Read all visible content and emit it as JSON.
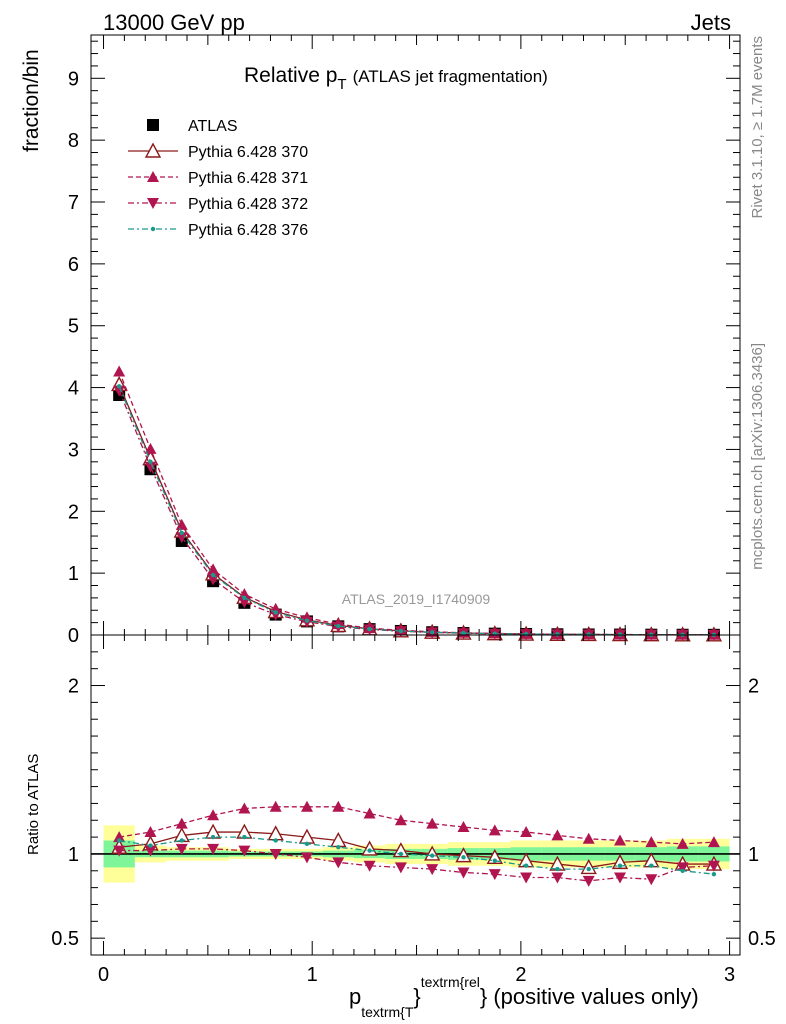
{
  "header": {
    "left": "13000 GeV pp",
    "right": "Jets",
    "side_top": "Rivet 3.1.10, ≥ 1.7M events",
    "side_bottom": "mcplots.cern.ch [arXiv:1306.3436]",
    "watermark": "ATLAS_2019_I1740909"
  },
  "chart_data": [
    {
      "type": "line",
      "title_main": "Relative p",
      "title_sub": "T",
      "title_paren": "(ATLAS jet fragmentation)",
      "ylabel": "fraction/bin",
      "ylim": [
        0,
        9.7
      ],
      "yticks": [
        0,
        1,
        2,
        3,
        4,
        5,
        6,
        7,
        8,
        9
      ],
      "xlim": [
        -0.06,
        3.05
      ],
      "x": [
        0.075,
        0.225,
        0.375,
        0.525,
        0.675,
        0.825,
        0.975,
        1.125,
        1.275,
        1.425,
        1.575,
        1.725,
        1.875,
        2.025,
        2.175,
        2.325,
        2.475,
        2.625,
        2.775,
        2.925
      ],
      "series": [
        {
          "name": "ATLAS",
          "color": "#000000",
          "marker": "square",
          "values": [
            3.88,
            2.68,
            1.52,
            0.87,
            0.52,
            0.33,
            0.22,
            0.14,
            0.095,
            0.065,
            0.045,
            0.032,
            0.022,
            0.016,
            0.012,
            0.009,
            0.007,
            0.005,
            0.004,
            0.003
          ]
        },
        {
          "name": "Pythia 6.428 370",
          "color": "#8b1a1a",
          "marker": "triangle-open",
          "dash": "",
          "values": [
            4.05,
            2.85,
            1.68,
            0.99,
            0.61,
            0.38,
            0.245,
            0.155,
            0.1,
            0.067,
            0.045,
            0.032,
            0.022,
            0.0155,
            0.0112,
            0.0083,
            0.0066,
            0.0048,
            0.0037,
            0.0028
          ]
        },
        {
          "name": "Pythia 6.428 371",
          "color": "#b0154f",
          "marker": "triangle-up",
          "dash": "5,3",
          "values": [
            4.26,
            3.01,
            1.78,
            1.06,
            0.66,
            0.42,
            0.28,
            0.175,
            0.112,
            0.075,
            0.051,
            0.036,
            0.025,
            0.018,
            0.013,
            0.0098,
            0.0076,
            0.0055,
            0.0043,
            0.0033
          ]
        },
        {
          "name": "Pythia 6.428 372",
          "color": "#b0154f",
          "marker": "triangle-down",
          "dash": "6,3,2,3",
          "values": [
            3.95,
            2.72,
            1.58,
            0.9,
            0.53,
            0.33,
            0.215,
            0.135,
            0.09,
            0.06,
            0.041,
            0.028,
            0.019,
            0.0138,
            0.0104,
            0.0076,
            0.0061,
            0.0043,
            0.0037,
            0.0028
          ]
        },
        {
          "name": "Pythia 6.428 376",
          "color": "#1a9a8a",
          "marker": "dot",
          "dash": "6,3,2,3",
          "values": [
            4.02,
            2.8,
            1.65,
            0.97,
            0.6,
            0.365,
            0.232,
            0.145,
            0.096,
            0.064,
            0.043,
            0.031,
            0.021,
            0.0147,
            0.0107,
            0.0083,
            0.0066,
            0.0047,
            0.0035,
            0.0026
          ]
        }
      ]
    },
    {
      "type": "line",
      "ylabel": "Ratio to ATLAS",
      "ylim": [
        0.4,
        2.3
      ],
      "yticks": [
        0.5,
        1,
        2
      ],
      "xlim": [
        -0.06,
        3.05
      ],
      "xticks": [
        0,
        1,
        2,
        3
      ],
      "xlabel_main": "p",
      "xlabel_sub": "textrm{T",
      "xlabel_sup": "textrm{rel",
      "xlabel_brace": "}",
      "xlabel_rest": "} (positive values only)",
      "x": [
        0.075,
        0.225,
        0.375,
        0.525,
        0.675,
        0.825,
        0.975,
        1.125,
        1.275,
        1.425,
        1.575,
        1.725,
        1.875,
        2.025,
        2.175,
        2.325,
        2.475,
        2.625,
        2.775,
        2.925
      ],
      "band_yellow": [
        [
          0.83,
          1.17
        ],
        [
          0.95,
          1.05
        ],
        [
          0.96,
          1.04
        ],
        [
          0.96,
          1.04
        ],
        [
          0.97,
          1.03
        ],
        [
          0.97,
          1.03
        ],
        [
          0.97,
          1.03
        ],
        [
          0.96,
          1.04
        ],
        [
          0.95,
          1.05
        ],
        [
          0.94,
          1.06
        ],
        [
          0.94,
          1.06
        ],
        [
          0.93,
          1.07
        ],
        [
          0.93,
          1.07
        ],
        [
          0.92,
          1.08
        ],
        [
          0.92,
          1.08
        ],
        [
          0.92,
          1.08
        ],
        [
          0.92,
          1.08
        ],
        [
          0.92,
          1.08
        ],
        [
          0.91,
          1.09
        ],
        [
          0.91,
          1.09
        ]
      ],
      "band_green": [
        [
          0.92,
          1.08
        ],
        [
          0.98,
          1.02
        ],
        [
          0.98,
          1.02
        ],
        [
          0.98,
          1.02
        ],
        [
          0.985,
          1.015
        ],
        [
          0.985,
          1.015
        ],
        [
          0.985,
          1.015
        ],
        [
          0.98,
          1.02
        ],
        [
          0.975,
          1.025
        ],
        [
          0.97,
          1.03
        ],
        [
          0.97,
          1.03
        ],
        [
          0.965,
          1.035
        ],
        [
          0.965,
          1.035
        ],
        [
          0.96,
          1.04
        ],
        [
          0.96,
          1.04
        ],
        [
          0.96,
          1.04
        ],
        [
          0.96,
          1.04
        ],
        [
          0.96,
          1.04
        ],
        [
          0.955,
          1.045
        ],
        [
          0.955,
          1.045
        ]
      ],
      "series": [
        {
          "name": "Pythia 6.428 370",
          "color": "#8b1a1a",
          "marker": "triangle-open",
          "dash": "",
          "values": [
            1.04,
            1.06,
            1.11,
            1.13,
            1.13,
            1.12,
            1.1,
            1.08,
            1.03,
            1.02,
            1.0,
            0.99,
            0.98,
            0.96,
            0.94,
            0.92,
            0.95,
            0.96,
            0.94,
            0.94
          ]
        },
        {
          "name": "Pythia 6.428 371",
          "color": "#b0154f",
          "marker": "triangle-up",
          "dash": "5,3",
          "values": [
            1.1,
            1.13,
            1.18,
            1.23,
            1.27,
            1.28,
            1.28,
            1.28,
            1.24,
            1.2,
            1.18,
            1.16,
            1.14,
            1.13,
            1.11,
            1.09,
            1.08,
            1.07,
            1.06,
            1.07
          ]
        },
        {
          "name": "Pythia 6.428 372",
          "color": "#b0154f",
          "marker": "triangle-down",
          "dash": "6,3,2,3",
          "values": [
            1.02,
            1.02,
            1.03,
            1.03,
            1.02,
            1.0,
            0.98,
            0.95,
            0.93,
            0.92,
            0.91,
            0.89,
            0.88,
            0.86,
            0.86,
            0.84,
            0.86,
            0.85,
            0.92,
            0.93
          ]
        },
        {
          "name": "Pythia 6.428 376",
          "color": "#1a9a8a",
          "marker": "dot",
          "dash": "6,3,2,3",
          "values": [
            1.08,
            1.05,
            1.08,
            1.1,
            1.1,
            1.08,
            1.06,
            1.04,
            1.02,
            1.0,
            0.99,
            0.98,
            0.96,
            0.93,
            0.91,
            0.91,
            0.93,
            0.93,
            0.9,
            0.88
          ]
        }
      ]
    }
  ]
}
